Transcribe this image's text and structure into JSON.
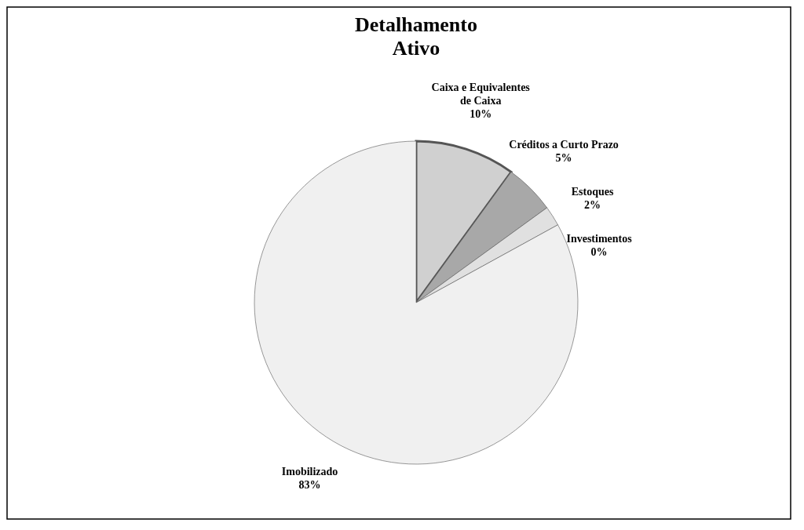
{
  "chart_data": {
    "type": "pie",
    "title": "Detalhamento Ativo",
    "categories": [
      "Caixa e Equivalentes de Caixa",
      "Créditos a Curto Prazo",
      "Estoques",
      "Investimentos",
      "Imobilizado"
    ],
    "values": [
      10,
      5,
      2,
      0,
      83
    ],
    "value_labels": [
      "10%",
      "5%",
      "2%",
      "0%",
      "83%"
    ],
    "colors": [
      "#d0d0d0",
      "#a8a8a8",
      "#e0e0e0",
      "#909090",
      "#f0f0f0"
    ]
  }
}
